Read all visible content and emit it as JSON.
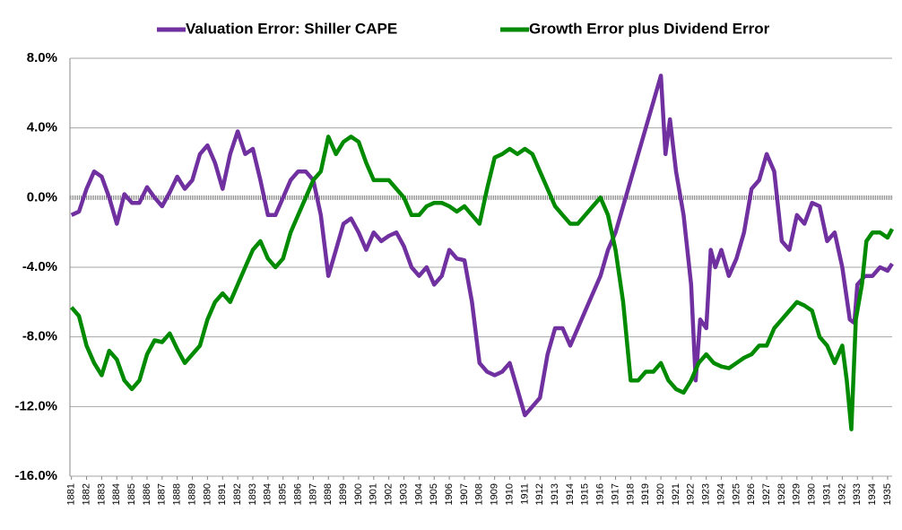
{
  "chart_data": {
    "type": "line",
    "legend": "top",
    "grid": true,
    "xlim": [
      1880.9,
      1935.3
    ],
    "xticks": [
      1881,
      1882,
      1883,
      1884,
      1885,
      1886,
      1887,
      1888,
      1889,
      1890,
      1891,
      1892,
      1893,
      1894,
      1895,
      1896,
      1897,
      1898,
      1899,
      1900,
      1901,
      1902,
      1903,
      1904,
      1905,
      1906,
      1907,
      1908,
      1909,
      1910,
      1911,
      1912,
      1913,
      1914,
      1915,
      1916,
      1917,
      1918,
      1919,
      1920,
      1921,
      1922,
      1923,
      1924,
      1925,
      1926,
      1927,
      1928,
      1929,
      1930,
      1931,
      1932,
      1933,
      1934,
      1935
    ],
    "ylim": [
      -16,
      8
    ],
    "yticks": [
      {
        "value": -16,
        "label": "-16.0%"
      },
      {
        "value": -12,
        "label": "-12.0%"
      },
      {
        "value": -8,
        "label": "-8.0%"
      },
      {
        "value": -4,
        "label": "-4.0%"
      },
      {
        "value": 0,
        "label": "0.0%"
      },
      {
        "value": 4,
        "label": "4.0%"
      },
      {
        "value": 8,
        "label": "8.0%"
      }
    ],
    "series": [
      {
        "name": "Valuation Error: Shiller CAPE",
        "color": "#7030a0",
        "x": [
          1881,
          1881.5,
          1882,
          1882.5,
          1883,
          1883.5,
          1884,
          1884.5,
          1885,
          1885.5,
          1886,
          1886.5,
          1887,
          1887.5,
          1888,
          1888.5,
          1889,
          1889.5,
          1890,
          1890.5,
          1891,
          1891.5,
          1892,
          1892.5,
          1893,
          1893.5,
          1894,
          1894.5,
          1895,
          1895.5,
          1896,
          1896.5,
          1897,
          1897.5,
          1898,
          1898.5,
          1899,
          1899.5,
          1900,
          1900.5,
          1901,
          1901.5,
          1902,
          1902.5,
          1903,
          1903.5,
          1904,
          1904.5,
          1905,
          1905.5,
          1906,
          1906.5,
          1907,
          1907.5,
          1908,
          1908.5,
          1909,
          1909.5,
          1910,
          1910.5,
          1911,
          1911.5,
          1912,
          1912.5,
          1913,
          1913.5,
          1914,
          1914.5,
          1915,
          1915.5,
          1916,
          1916.5,
          1917,
          1917.5,
          1918,
          1918.5,
          1919,
          1919.5,
          1920,
          1920.3,
          1920.6,
          1921,
          1921.5,
          1922,
          1922.3,
          1922.6,
          1923,
          1923.3,
          1923.6,
          1924,
          1924.5,
          1925,
          1925.5,
          1926,
          1926.5,
          1927,
          1927.5,
          1928,
          1928.5,
          1929,
          1929.5,
          1930,
          1930.5,
          1931,
          1931.5,
          1932,
          1932.5,
          1932.8,
          1933,
          1933.5,
          1934,
          1934.5,
          1935,
          1935.3
        ],
        "values": [
          -1.0,
          -0.8,
          0.5,
          1.5,
          1.2,
          0.0,
          -1.5,
          0.2,
          -0.3,
          -0.3,
          0.6,
          0.0,
          -0.5,
          0.3,
          1.2,
          0.5,
          1.0,
          2.5,
          3.0,
          2.0,
          0.5,
          2.5,
          3.8,
          2.5,
          2.8,
          1.0,
          -1.0,
          -1.0,
          0.0,
          1.0,
          1.5,
          1.5,
          1.0,
          -1.0,
          -4.5,
          -3.0,
          -1.5,
          -1.2,
          -2.0,
          -3.0,
          -2.0,
          -2.5,
          -2.2,
          -2.0,
          -2.8,
          -4.0,
          -4.5,
          -4.0,
          -5.0,
          -4.5,
          -3.0,
          -3.5,
          -3.6,
          -6.0,
          -9.5,
          -10.0,
          -10.2,
          -10.0,
          -9.5,
          -11.0,
          -12.5,
          -12.0,
          -11.5,
          -9.0,
          -7.5,
          -7.5,
          -8.5,
          -7.5,
          -6.5,
          -5.5,
          -4.5,
          -3.0,
          -2.0,
          -0.5,
          1.0,
          2.5,
          4.0,
          5.5,
          7.0,
          2.5,
          4.5,
          1.5,
          -1.0,
          -5.0,
          -10.5,
          -7.0,
          -7.5,
          -3.0,
          -4.0,
          -3.0,
          -4.5,
          -3.5,
          -2.0,
          0.5,
          1.0,
          2.5,
          1.5,
          -2.5,
          -3.0,
          -1.0,
          -1.5,
          -0.3,
          -0.5,
          -2.5,
          -2.0,
          -4.0,
          -7.0,
          -7.2,
          -5.0,
          -4.5,
          -4.5,
          -4.0,
          -4.2,
          -3.8
        ]
      },
      {
        "name": "Growth Error plus Dividend Error",
        "color": "#008a00",
        "x": [
          1881,
          1881.5,
          1882,
          1882.5,
          1883,
          1883.5,
          1884,
          1884.5,
          1885,
          1885.5,
          1886,
          1886.5,
          1887,
          1887.5,
          1888,
          1888.5,
          1889,
          1889.5,
          1890,
          1890.5,
          1891,
          1891.5,
          1892,
          1892.5,
          1893,
          1893.5,
          1894,
          1894.5,
          1895,
          1895.5,
          1896,
          1896.5,
          1897,
          1897.5,
          1898,
          1898.5,
          1899,
          1899.5,
          1900,
          1900.5,
          1901,
          1901.5,
          1902,
          1902.5,
          1903,
          1903.5,
          1904,
          1904.5,
          1905,
          1905.5,
          1906,
          1906.5,
          1907,
          1907.5,
          1908,
          1908.5,
          1909,
          1909.5,
          1910,
          1910.5,
          1911,
          1911.5,
          1912,
          1912.5,
          1913,
          1913.5,
          1914,
          1914.5,
          1915,
          1915.5,
          1916,
          1916.5,
          1917,
          1917.5,
          1918,
          1918.5,
          1919,
          1919.5,
          1920,
          1920.5,
          1921,
          1921.5,
          1922,
          1922.5,
          1923,
          1923.5,
          1924,
          1924.5,
          1925,
          1925.5,
          1926,
          1926.5,
          1927,
          1927.5,
          1928,
          1928.5,
          1929,
          1929.5,
          1930,
          1930.5,
          1931,
          1931.5,
          1932,
          1932.3,
          1932.6,
          1932.9,
          1933.3,
          1933.6,
          1934,
          1934.5,
          1935,
          1935.3
        ],
        "values": [
          -6.3,
          -6.8,
          -8.5,
          -9.5,
          -10.2,
          -8.8,
          -9.3,
          -10.5,
          -11.0,
          -10.5,
          -9.0,
          -8.2,
          -8.3,
          -7.8,
          -8.7,
          -9.5,
          -9.0,
          -8.5,
          -7.0,
          -6.0,
          -5.5,
          -6.0,
          -5.0,
          -4.0,
          -3.0,
          -2.5,
          -3.5,
          -4.0,
          -3.5,
          -2.0,
          -1.0,
          0.0,
          1.0,
          1.5,
          3.5,
          2.5,
          3.2,
          3.5,
          3.2,
          2.0,
          1.0,
          1.0,
          1.0,
          0.5,
          0.0,
          -1.0,
          -1.0,
          -0.5,
          -0.3,
          -0.3,
          -0.5,
          -0.8,
          -0.5,
          -1.0,
          -1.5,
          0.5,
          2.3,
          2.5,
          2.8,
          2.5,
          2.8,
          2.5,
          1.5,
          0.5,
          -0.5,
          -1.0,
          -1.5,
          -1.5,
          -1.0,
          -0.5,
          0.0,
          -1.0,
          -3.0,
          -6.0,
          -10.5,
          -10.5,
          -10.0,
          -10.0,
          -9.5,
          -10.5,
          -11.0,
          -11.2,
          -10.5,
          -9.5,
          -9.0,
          -9.5,
          -9.7,
          -9.8,
          -9.5,
          -9.2,
          -9.0,
          -8.5,
          -8.5,
          -7.5,
          -7.0,
          -6.5,
          -6.0,
          -6.2,
          -6.5,
          -8.0,
          -8.5,
          -9.5,
          -8.5,
          -10.5,
          -13.3,
          -7.0,
          -5.0,
          -2.5,
          -2.0,
          -2.0,
          -2.3,
          -1.8
        ]
      }
    ]
  }
}
